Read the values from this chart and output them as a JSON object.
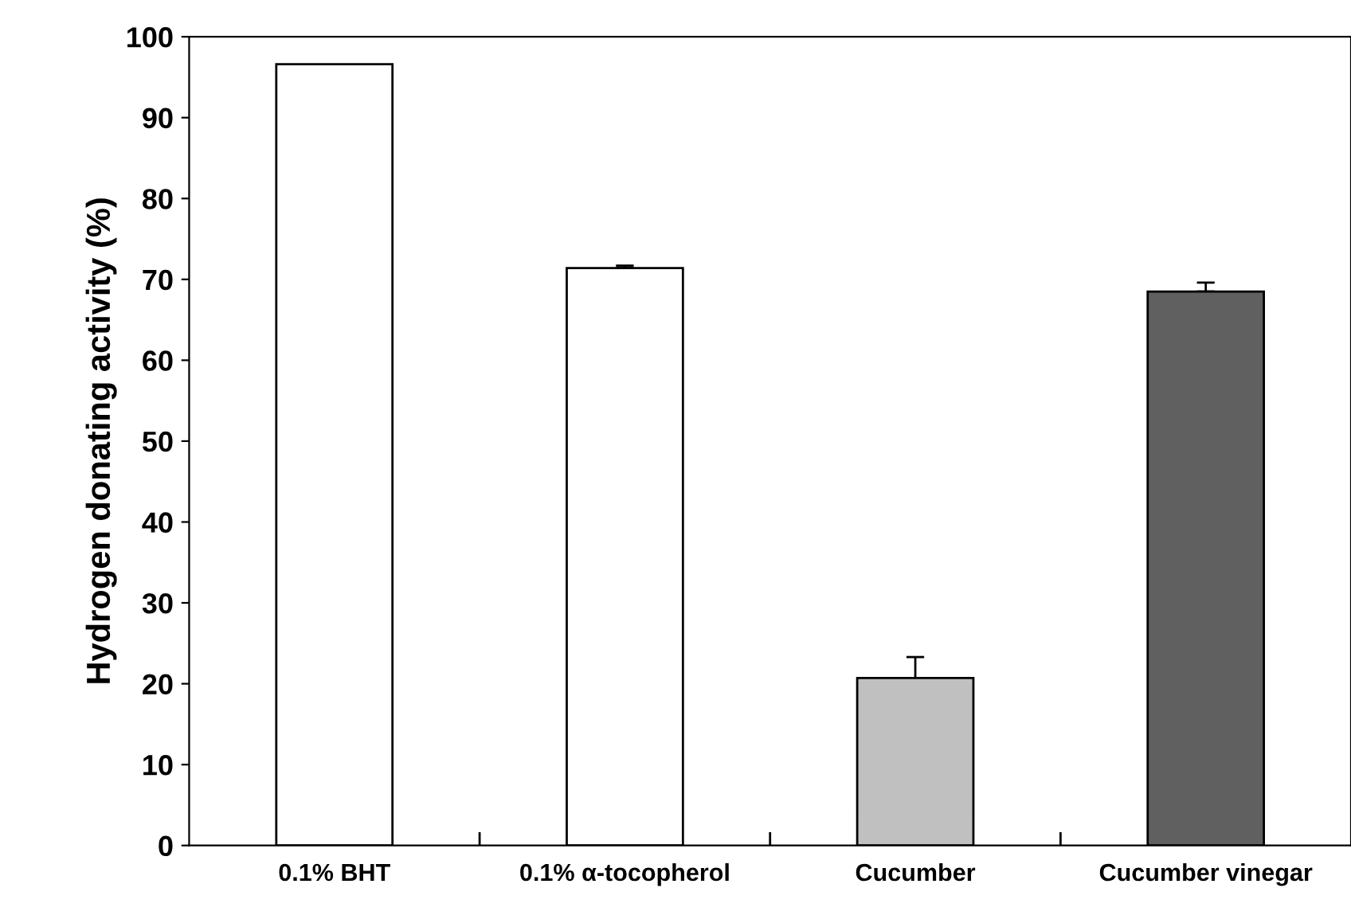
{
  "chart_data": {
    "type": "bar",
    "ylabel": "Hydrogen donating activity (%)",
    "categories": [
      "0.1% BHT",
      "0.1% α-tocopherol",
      "Cucumber",
      "Cucumber vinegar"
    ],
    "values": [
      96.6,
      71.4,
      20.7,
      68.5
    ],
    "errors": [
      null,
      0.3,
      2.6,
      1.1
    ],
    "colors": [
      "#ffffff",
      "#ffffff",
      "#c0c0c0",
      "#606060"
    ],
    "ylim": [
      0,
      100
    ],
    "yticks": [
      0,
      10,
      20,
      30,
      40,
      50,
      60,
      70,
      80,
      90,
      100
    ],
    "grid": false
  }
}
